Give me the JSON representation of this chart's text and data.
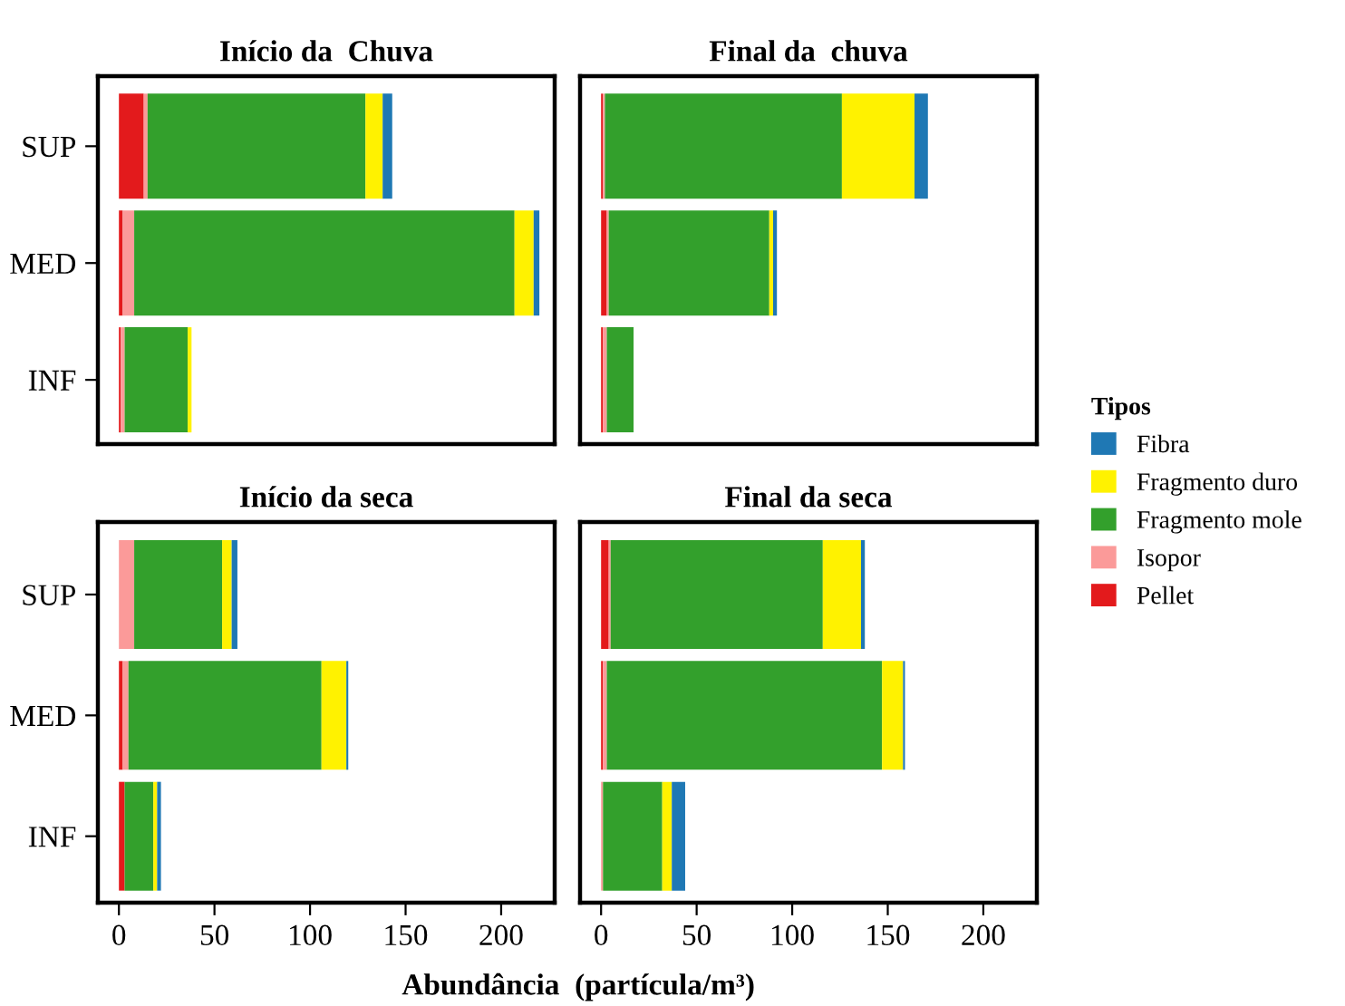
{
  "chart_data": [
    {
      "type": "bar",
      "orientation": "horizontal",
      "stacked": true,
      "title": "Início da  Chuva",
      "categories": [
        "SUP",
        "MED",
        "INF"
      ],
      "xlim": [
        -11,
        228
      ],
      "tick_labels": "y",
      "grid": false,
      "legend": "right",
      "legend_title": "Tipos",
      "series": [
        {
          "name": "Pellet",
          "color": "#e31a1c",
          "values": [
            13,
            2,
            1
          ]
        },
        {
          "name": "Isopor",
          "color": "#fb9a99",
          "values": [
            2,
            6,
            2
          ]
        },
        {
          "name": "Fragmento mole",
          "color": "#33a02c",
          "values": [
            114,
            199,
            33
          ]
        },
        {
          "name": "Fragmento duro",
          "color": "#fff200",
          "values": [
            9,
            10,
            2
          ]
        },
        {
          "name": "Fibra",
          "color": "#1f78b4",
          "values": [
            5,
            3,
            0
          ]
        }
      ]
    },
    {
      "type": "bar",
      "orientation": "horizontal",
      "stacked": true,
      "title": "Final da  chuva",
      "categories": [
        null,
        null,
        null
      ],
      "xlim": [
        -11,
        228
      ],
      "tick_labels": false,
      "grid": false,
      "series": [
        {
          "color": "#e31a1c",
          "values": [
            1,
            3,
            1
          ]
        },
        {
          "color": "#fb9a99",
          "values": [
            1,
            1,
            2
          ]
        },
        {
          "color": "#33a02c",
          "values": [
            124,
            84,
            14
          ]
        },
        {
          "color": "#fff200",
          "values": [
            38,
            2,
            0
          ]
        },
        {
          "color": "#1f78b4",
          "values": [
            7,
            2,
            0
          ]
        }
      ]
    },
    {
      "type": "bar",
      "orientation": "horizontal",
      "stacked": true,
      "title": "Início da seca",
      "categories": [
        "SUP",
        "MED",
        "INF"
      ],
      "xlim": [
        -11,
        228
      ],
      "xticks": [
        0,
        50,
        100,
        150,
        200
      ],
      "grid": false,
      "xlabel": "Abundância  (partícula/m³)",
      "series": [
        {
          "color": "#e31a1c",
          "values": [
            0,
            2,
            3
          ]
        },
        {
          "color": "#fb9a99",
          "values": [
            8,
            3,
            0
          ]
        },
        {
          "color": "#33a02c",
          "values": [
            46,
            101,
            15
          ]
        },
        {
          "color": "#fff200",
          "values": [
            5,
            13,
            2
          ]
        },
        {
          "color": "#1f78b4",
          "values": [
            3,
            1,
            2
          ]
        }
      ]
    },
    {
      "type": "bar",
      "orientation": "horizontal",
      "stacked": true,
      "title": "Final da seca",
      "categories": [
        null,
        null,
        null
      ],
      "xlim": [
        -11,
        228
      ],
      "xticks": [
        0,
        50,
        100,
        150,
        200
      ],
      "tick_labels": "x",
      "grid": false,
      "series": [
        {
          "color": "#e31a1c",
          "values": [
            4,
            1,
            0
          ]
        },
        {
          "color": "#fb9a99",
          "values": [
            1,
            2,
            1
          ]
        },
        {
          "color": "#33a02c",
          "values": [
            111,
            144,
            31
          ]
        },
        {
          "color": "#fff200",
          "values": [
            20,
            11,
            5
          ]
        },
        {
          "color": "#1f78b4",
          "values": [
            2,
            1,
            7
          ]
        }
      ]
    }
  ]
}
